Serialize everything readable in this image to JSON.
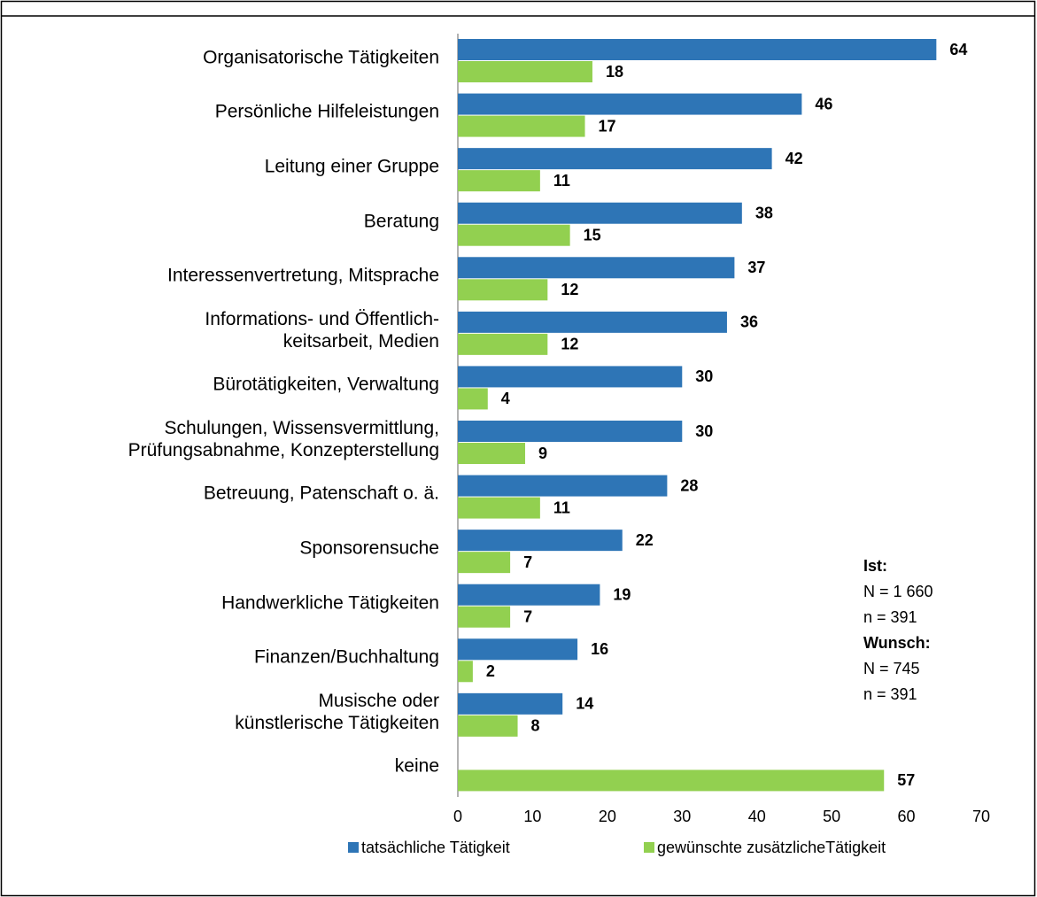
{
  "chart_data": {
    "type": "bar",
    "orientation": "horizontal",
    "categories": [
      "Organisatorische Tätigkeiten",
      "Persönliche Hilfeleistungen",
      "Leitung einer Gruppe",
      "Beratung",
      "Interessenvertretung, Mitsprache",
      "Informations- und Öffentlich-\nkeitsarbeit, Medien",
      "Bürotätigkeiten, Verwaltung",
      "Schulungen, Wissensvermittlung,\nPrüfungsabnahme, Konzepterstellung",
      "Betreuung, Patenschaft o. ä.",
      "Sponsorensuche",
      "Handwerkliche Tätigkeiten",
      "Finanzen/Buchhaltung",
      "Musische oder\nkünstlerische Tätigkeiten",
      "keine"
    ],
    "series": [
      {
        "name": "tatsächliche Tätigkeit",
        "color": "#2e75b6",
        "values": [
          64,
          46,
          42,
          38,
          37,
          36,
          30,
          30,
          28,
          22,
          19,
          16,
          14,
          null
        ]
      },
      {
        "name": "gewünschte zusätzlicheTätigkeit",
        "color": "#92d050",
        "values": [
          18,
          17,
          11,
          15,
          12,
          12,
          4,
          9,
          11,
          7,
          7,
          2,
          8,
          57
        ]
      }
    ],
    "xlim": [
      0,
      70
    ],
    "xticks": [
      0,
      10,
      20,
      30,
      40,
      50,
      60,
      70
    ],
    "grid": false,
    "legend": "bottom",
    "annotations": [
      {
        "text": "Ist:",
        "bold": true
      },
      {
        "text": "N = 1 660",
        "bold": false
      },
      {
        "text": "n = 391",
        "bold": false
      },
      {
        "text": "Wunsch:",
        "bold": true
      },
      {
        "text": "N = 745",
        "bold": false
      },
      {
        "text": "n = 391",
        "bold": false
      }
    ]
  }
}
